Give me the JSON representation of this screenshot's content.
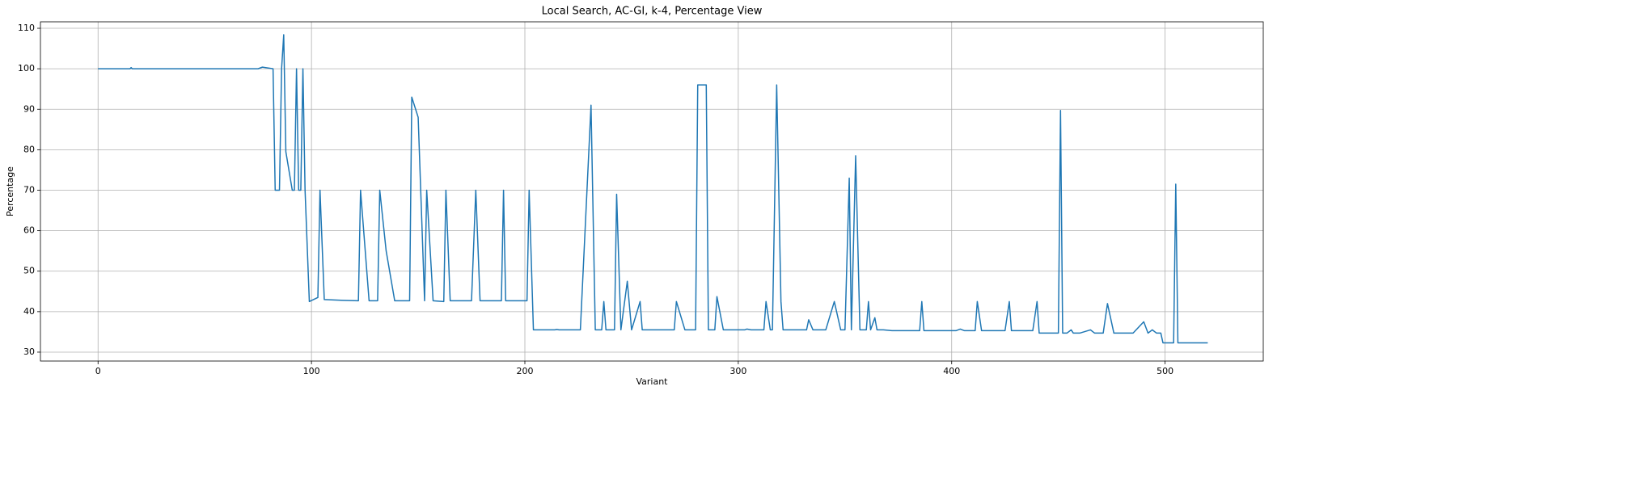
{
  "chart_data": {
    "type": "line",
    "title": "Local Search, AC-GI, k-4, Percentage View",
    "xlabel": "Variant",
    "ylabel": "Percentage",
    "color": "#1f77b4",
    "grid": true,
    "xlim": [
      -27,
      546
    ],
    "ylim": [
      27.8,
      111.6
    ],
    "xticks": [
      0,
      100,
      200,
      300,
      400,
      500
    ],
    "yticks": [
      30,
      40,
      50,
      60,
      70,
      80,
      90,
      100,
      110
    ],
    "x": [
      0,
      15,
      15.5,
      16,
      75,
      77,
      82,
      83,
      85,
      86,
      87,
      88,
      91,
      92,
      93,
      94,
      95,
      96,
      97,
      99,
      101,
      103,
      104,
      106,
      115,
      122,
      123,
      127,
      131,
      132,
      135,
      139,
      146,
      147,
      150,
      153,
      154,
      157,
      162,
      163,
      165,
      175,
      177,
      179,
      189,
      190,
      191,
      201,
      202,
      204,
      214,
      215,
      216,
      226,
      231,
      233,
      236,
      237,
      238,
      242,
      243,
      245,
      248,
      250,
      254,
      255,
      262,
      270,
      271,
      275,
      280,
      281,
      285,
      286,
      289,
      290,
      293,
      300,
      303,
      304,
      306,
      312,
      313,
      315,
      316,
      318,
      320,
      321,
      332,
      333,
      335,
      341,
      345,
      348,
      350,
      352,
      353,
      355,
      357,
      360,
      361,
      362,
      364,
      365,
      368,
      372,
      385,
      386,
      387,
      400,
      402,
      404,
      406,
      411,
      412,
      414,
      420,
      425,
      427,
      428,
      438,
      440,
      441,
      448,
      450,
      451,
      452,
      454,
      456,
      457,
      460,
      465,
      467,
      471,
      473,
      476,
      485,
      490,
      492,
      494,
      496,
      498,
      499,
      501,
      504,
      505,
      506,
      520
    ],
    "values": [
      100,
      100,
      100.3,
      100,
      100,
      100.4,
      100,
      70,
      70,
      100,
      108.4,
      79.5,
      70,
      70,
      100,
      70,
      70,
      100,
      70,
      42.5,
      43,
      43.5,
      70,
      43,
      42.8,
      42.7,
      70,
      42.7,
      42.7,
      70,
      55,
      42.7,
      42.7,
      93,
      88,
      42.7,
      70,
      42.7,
      42.5,
      70,
      42.7,
      42.7,
      70,
      42.7,
      42.7,
      70,
      42.7,
      42.7,
      70,
      35.5,
      35.5,
      35.6,
      35.5,
      35.5,
      91,
      35.5,
      35.5,
      42.5,
      35.5,
      35.5,
      69,
      35.5,
      47.5,
      35.5,
      42.5,
      35.5,
      35.5,
      35.5,
      42.5,
      35.5,
      35.5,
      96,
      96,
      35.5,
      35.5,
      43.7,
      35.5,
      35.5,
      35.5,
      35.7,
      35.5,
      35.5,
      42.5,
      35.5,
      35.5,
      96,
      42.5,
      35.5,
      35.5,
      38,
      35.5,
      35.5,
      42.5,
      35.5,
      35.5,
      73,
      35.5,
      78.5,
      35.5,
      35.5,
      42.5,
      35.5,
      38.5,
      35.5,
      35.5,
      35.3,
      35.3,
      42.5,
      35.3,
      35.3,
      35.3,
      35.7,
      35.3,
      35.3,
      42.5,
      35.3,
      35.3,
      35.3,
      42.5,
      35.3,
      35.3,
      42.5,
      34.7,
      34.7,
      34.7,
      89.7,
      34.7,
      34.7,
      35.5,
      34.7,
      34.7,
      35.5,
      34.7,
      34.7,
      42,
      34.7,
      34.7,
      37.5,
      34.7,
      35.5,
      34.7,
      34.7,
      32.3,
      32.3,
      32.3,
      71.5,
      32.3,
      32.3
    ]
  }
}
